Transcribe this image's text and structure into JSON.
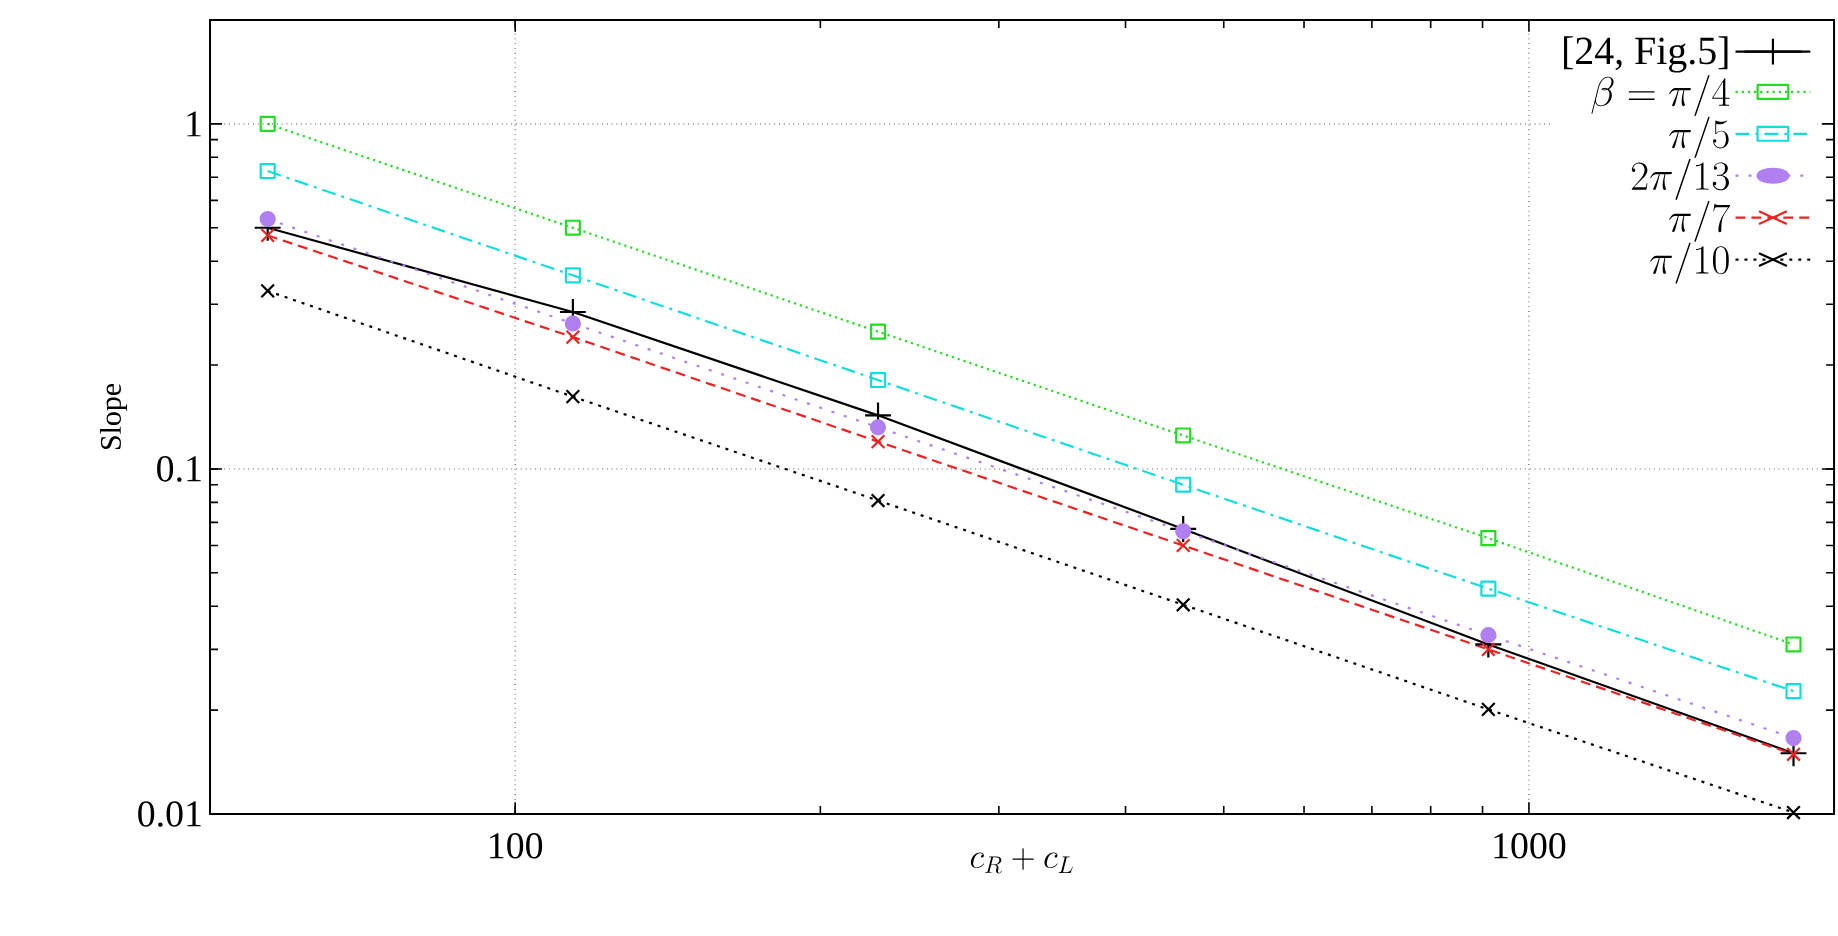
{
  "chart_data": {
    "type": "line",
    "xlabel": "c_R + c_L",
    "ylabel": "Slope",
    "x": [
      57,
      114,
      228,
      456,
      912,
      1824
    ],
    "series": [
      {
        "name": "[24, Fig.5]",
        "color": "#000000",
        "marker": "plus",
        "line_style": "solid",
        "values": [
          0.5,
          0.285,
          0.143,
          0.067,
          0.031,
          0.015
        ]
      },
      {
        "name": "\\beta = \\pi/4",
        "color": "#22dd22",
        "marker": "square",
        "line_style": "dotted",
        "values": [
          1.0,
          0.5,
          0.25,
          0.125,
          0.063,
          0.031
        ]
      },
      {
        "name": "\\pi/5",
        "color": "#11dddd",
        "marker": "square",
        "line_style": "dashdot",
        "values": [
          0.73,
          0.364,
          0.181,
          0.09,
          0.045,
          0.0227
        ]
      },
      {
        "name": "2\\pi/13",
        "color": "#b07ff0",
        "marker": "circle",
        "line_style": "loosely dotted",
        "values": [
          0.53,
          0.264,
          0.132,
          0.066,
          0.033,
          0.0166
        ]
      },
      {
        "name": "\\pi/7",
        "color": "#ee2222",
        "marker": "cross",
        "line_style": "dashed",
        "values": [
          0.475,
          0.241,
          0.12,
          0.06,
          0.03,
          0.0149
        ]
      },
      {
        "name": "\\pi/10",
        "color": "#000000",
        "marker": "cross",
        "line_style": "densely dotted",
        "values": [
          0.328,
          0.162,
          0.081,
          0.0404,
          0.0201,
          0.0101
        ]
      }
    ],
    "log": "xy",
    "xlim": [
      50,
      2000
    ],
    "ylim": [
      0.01,
      2
    ],
    "xticks": [
      100,
      1000
    ],
    "yticks": [
      0.01,
      0.1,
      1
    ],
    "grid": true,
    "legend": "top right"
  }
}
